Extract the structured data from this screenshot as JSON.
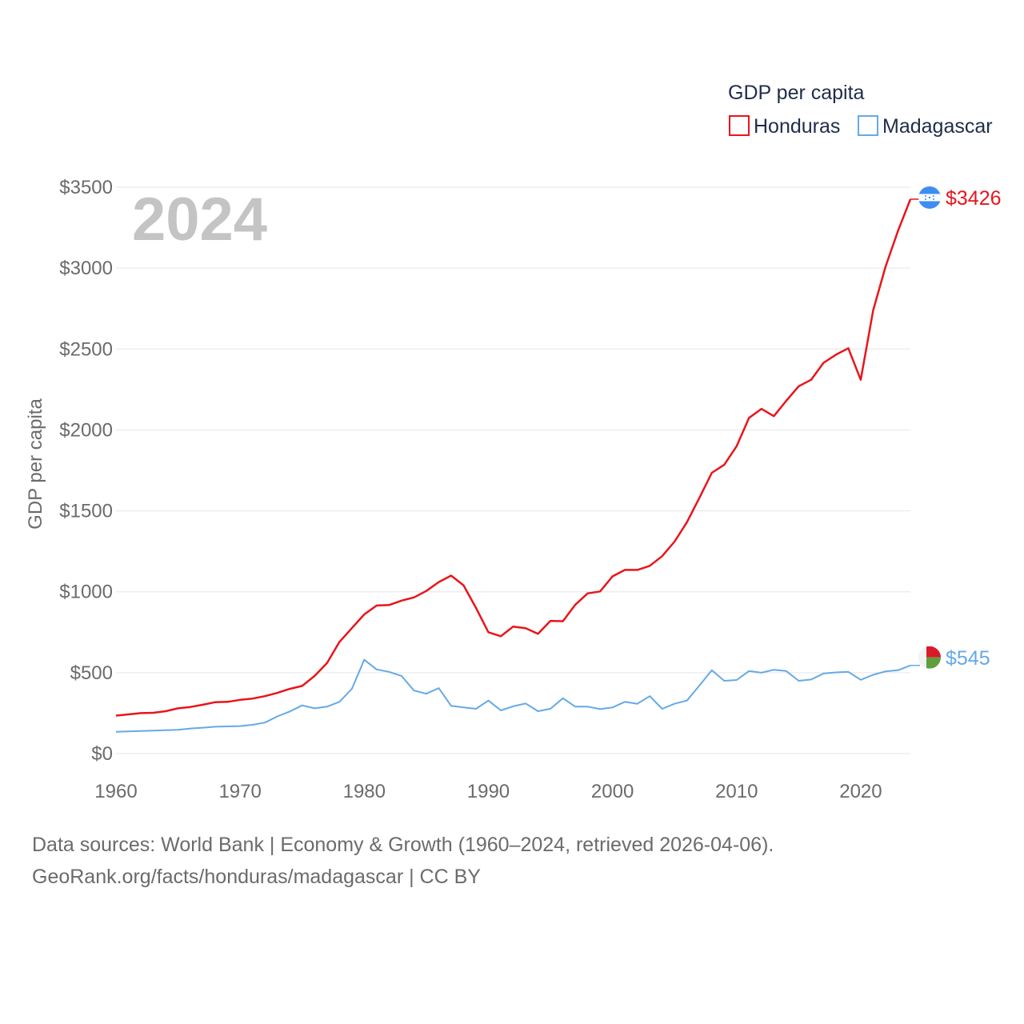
{
  "chart_data": {
    "type": "line",
    "ylabel": "GDP per capita",
    "legend_title": "GDP per capita",
    "year_label": "2024",
    "ylim": [
      0,
      3500
    ],
    "xlim": [
      1960,
      2024
    ],
    "y_ticks": [
      0,
      500,
      1000,
      1500,
      2000,
      2500,
      3000,
      3500
    ],
    "y_tick_labels": [
      "$0",
      "$500",
      "$1000",
      "$1500",
      "$2000",
      "$2500",
      "$3000",
      "$3500"
    ],
    "x_ticks": [
      1960,
      1970,
      1980,
      1990,
      2000,
      2010,
      2020
    ],
    "x_tick_labels": [
      "1960",
      "1970",
      "1980",
      "1990",
      "2000",
      "2010",
      "2020"
    ],
    "series": [
      {
        "name": "Honduras",
        "color": "#e8151b",
        "end_label": "$3426",
        "flag": "honduras-flag",
        "x": [
          1960,
          1961,
          1962,
          1963,
          1964,
          1965,
          1966,
          1967,
          1968,
          1969,
          1970,
          1971,
          1972,
          1973,
          1974,
          1975,
          1976,
          1977,
          1978,
          1979,
          1980,
          1981,
          1982,
          1983,
          1984,
          1985,
          1986,
          1987,
          1988,
          1989,
          1990,
          1991,
          1992,
          1993,
          1994,
          1995,
          1996,
          1997,
          1998,
          1999,
          2000,
          2001,
          2002,
          2003,
          2004,
          2005,
          2006,
          2007,
          2008,
          2009,
          2010,
          2011,
          2012,
          2013,
          2014,
          2015,
          2016,
          2017,
          2018,
          2019,
          2020,
          2021,
          2022,
          2023,
          2024
        ],
        "values": [
          235,
          242,
          250,
          252,
          262,
          280,
          288,
          302,
          318,
          320,
          332,
          340,
          355,
          375,
          400,
          418,
          480,
          560,
          690,
          775,
          860,
          915,
          918,
          945,
          965,
          1005,
          1060,
          1100,
          1040,
          900,
          750,
          725,
          785,
          775,
          740,
          820,
          818,
          920,
          990,
          1002,
          1095,
          1135,
          1135,
          1160,
          1220,
          1310,
          1430,
          1580,
          1735,
          1785,
          1900,
          2075,
          2130,
          2085,
          2180,
          2270,
          2310,
          2415,
          2465,
          2505,
          2310,
          2740,
          3010,
          3230,
          3426
        ]
      },
      {
        "name": "Madagascar",
        "color": "#66a9e6",
        "end_label": "$545",
        "flag": "madagascar-flag",
        "x": [
          1960,
          1961,
          1962,
          1963,
          1964,
          1965,
          1966,
          1967,
          1968,
          1969,
          1970,
          1971,
          1972,
          1973,
          1974,
          1975,
          1976,
          1977,
          1978,
          1979,
          1980,
          1981,
          1982,
          1983,
          1984,
          1985,
          1986,
          1987,
          1988,
          1989,
          1990,
          1991,
          1992,
          1993,
          1994,
          1995,
          1996,
          1997,
          1998,
          1999,
          2000,
          2001,
          2002,
          2003,
          2004,
          2005,
          2006,
          2007,
          2008,
          2009,
          2010,
          2011,
          2012,
          2013,
          2014,
          2015,
          2016,
          2017,
          2018,
          2019,
          2020,
          2021,
          2022,
          2023,
          2024
        ],
        "values": [
          135,
          137,
          140,
          142,
          145,
          147,
          155,
          160,
          166,
          168,
          170,
          178,
          192,
          230,
          260,
          298,
          280,
          290,
          320,
          400,
          580,
          520,
          505,
          480,
          390,
          370,
          405,
          295,
          285,
          277,
          328,
          267,
          292,
          310,
          262,
          277,
          342,
          290,
          290,
          275,
          285,
          320,
          308,
          355,
          277,
          308,
          328,
          420,
          515,
          450,
          455,
          510,
          500,
          518,
          510,
          450,
          458,
          495,
          502,
          505,
          456,
          487,
          508,
          515,
          545
        ]
      }
    ]
  },
  "footer": {
    "line1": "Data sources: World Bank | Economy & Growth (1960–2024, retrieved 2026-04-06).",
    "line2": "GeoRank.org/facts/honduras/madagascar | CC BY"
  }
}
